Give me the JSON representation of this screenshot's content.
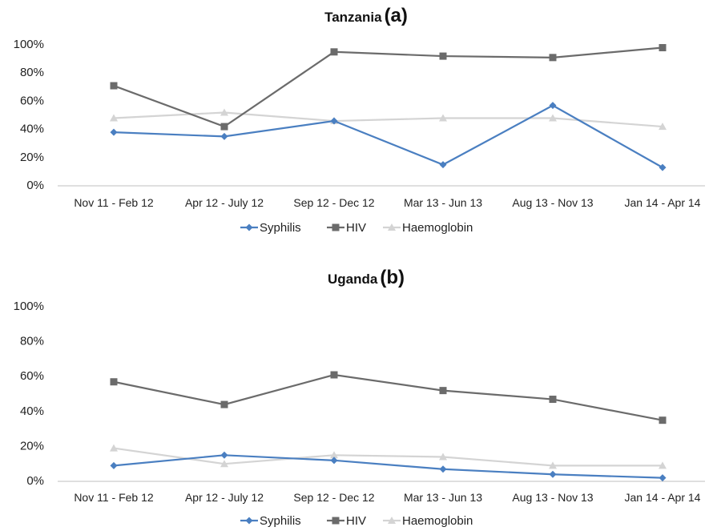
{
  "chart_data": [
    {
      "type": "line",
      "title": "Tanzania",
      "tag": "(a)",
      "categories": [
        "Nov 11 - Feb 12",
        "Apr 12 - July 12",
        "Sep 12 - Dec 12",
        "Mar 13 - Jun 13",
        "Aug 13 - Nov 13",
        "Jan 14 - Apr 14"
      ],
      "yticks": [
        "0%",
        "20%",
        "40%",
        "60%",
        "80%",
        "100%"
      ],
      "ylim": [
        0,
        100
      ],
      "grid": false,
      "legend_position": "bottom",
      "series": [
        {
          "name": "Syphilis",
          "color": "#4a7fc1",
          "marker": "diamond",
          "values": [
            38,
            35,
            46,
            15,
            57,
            13
          ]
        },
        {
          "name": "HIV",
          "color": "#6b6b6b",
          "marker": "square",
          "values": [
            71,
            42,
            95,
            92,
            91,
            98
          ]
        },
        {
          "name": "Haemoglobin",
          "color": "#d4d4d4",
          "marker": "triangle",
          "values": [
            48,
            52,
            46,
            48,
            48,
            42
          ]
        }
      ]
    },
    {
      "type": "line",
      "title": "Uganda",
      "tag": "(b)",
      "categories": [
        "Nov 11 - Feb 12",
        "Apr 12 - July 12",
        "Sep 12 - Dec 12",
        "Mar 13 - Jun 13",
        "Aug 13 - Nov 13",
        "Jan 14 - Apr 14"
      ],
      "yticks": [
        "0%",
        "20%",
        "40%",
        "60%",
        "80%",
        "100%"
      ],
      "ylim": [
        0,
        100
      ],
      "grid": false,
      "legend_position": "bottom",
      "series": [
        {
          "name": "Syphilis",
          "color": "#4a7fc1",
          "marker": "diamond",
          "values": [
            9,
            15,
            12,
            7,
            4,
            2
          ]
        },
        {
          "name": "HIV",
          "color": "#6b6b6b",
          "marker": "square",
          "values": [
            57,
            44,
            61,
            52,
            47,
            35
          ]
        },
        {
          "name": "Haemoglobin",
          "color": "#d4d4d4",
          "marker": "triangle",
          "values": [
            19,
            10,
            15,
            14,
            9,
            9
          ]
        }
      ]
    }
  ]
}
